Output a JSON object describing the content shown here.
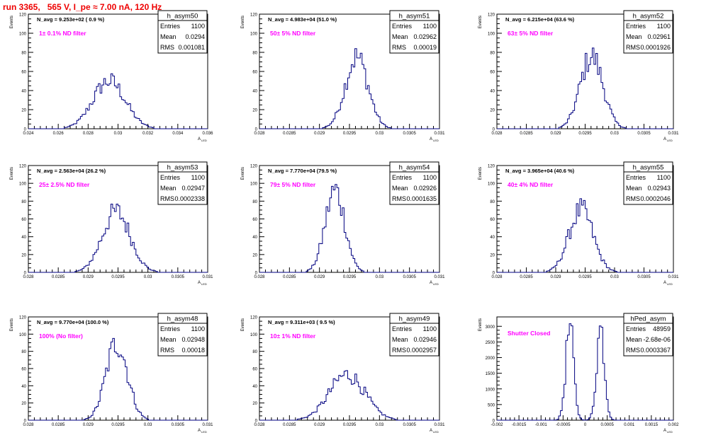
{
  "title": "run 3365,   565 V, I_pe ≈ 7.00 nA, 120 Hz",
  "axis_label_y": "Events",
  "axis_label_x": "A",
  "axis_label_x_sub": "LED",
  "stats_labels": {
    "entries": "Entries",
    "mean": "Mean",
    "rms": "RMS"
  },
  "colors": {
    "histogram": "#000080",
    "annotation": "#ff00ff",
    "title": "#ee0000",
    "frame": "#000000"
  },
  "chart_data": [
    {
      "type": "bar",
      "name": "h_asym50",
      "entries": "1100",
      "mean": "0.0294",
      "rms": "0.001081",
      "navg": "N_avg = 9.253e+02 ( 0.9 %)",
      "note": "1± 0.1% ND filter",
      "xlim": [
        0.024,
        0.036
      ],
      "ylim": [
        0,
        120
      ],
      "xticks": [
        "0.024",
        "0.026",
        "0.028",
        "0.03",
        "0.032",
        "0.034",
        "0.036"
      ],
      "yticks": [
        "0",
        "20",
        "40",
        "60",
        "80",
        "100",
        "120"
      ],
      "center": 0.0294,
      "peak": 50
    },
    {
      "type": "bar",
      "name": "h_asym51",
      "entries": "1100",
      "mean": "0.02962",
      "rms": "0.00019",
      "navg": "N_avg = 4.983e+04 (51.0 %)",
      "note": "50± 5% ND filter",
      "xlim": [
        0.028,
        0.031
      ],
      "ylim": [
        0,
        120
      ],
      "xticks": [
        "0.028",
        "0.0285",
        "0.029",
        "0.0295",
        "0.03",
        "0.0305",
        "0.031"
      ],
      "yticks": [
        "0",
        "20",
        "40",
        "60",
        "80",
        "100",
        "120"
      ],
      "center": 0.02962,
      "peak": 75
    },
    {
      "type": "bar",
      "name": "h_asym52",
      "entries": "1100",
      "mean": "0.02961",
      "rms": "0.0001926",
      "navg": "N_avg = 6.215e+04 (63.6 %)",
      "note": "63± 5% ND filter",
      "xlim": [
        0.028,
        0.031
      ],
      "ylim": [
        0,
        120
      ],
      "xticks": [
        "0.028",
        "0.0285",
        "0.029",
        "0.0295",
        "0.03",
        "0.0305",
        "0.031"
      ],
      "yticks": [
        "0",
        "20",
        "40",
        "60",
        "80",
        "100",
        "120"
      ],
      "center": 0.02961,
      "peak": 76
    },
    {
      "type": "bar",
      "name": "h_asym53",
      "entries": "1100",
      "mean": "0.02947",
      "rms": "0.0002338",
      "navg": "N_avg = 2.563e+04 (26.2 %)",
      "note": "25± 2.5% ND filter",
      "xlim": [
        0.028,
        0.031
      ],
      "ylim": [
        0,
        120
      ],
      "xticks": [
        "0.028",
        "0.0285",
        "0.029",
        "0.0295",
        "0.03",
        "0.0305",
        "0.031"
      ],
      "yticks": [
        "0",
        "20",
        "40",
        "60",
        "80",
        "100",
        "120"
      ],
      "center": 0.02947,
      "peak": 68
    },
    {
      "type": "bar",
      "name": "h_asym54",
      "entries": "1100",
      "mean": "0.02926",
      "rms": "0.0001635",
      "navg": "N_avg = 7.770e+04 (79.5 %)",
      "note": "79± 5% ND filter",
      "xlim": [
        0.028,
        0.031
      ],
      "ylim": [
        0,
        120
      ],
      "xticks": [
        "0.028",
        "0.0285",
        "0.029",
        "0.0295",
        "0.03",
        "0.0305",
        "0.031"
      ],
      "yticks": [
        "0",
        "20",
        "40",
        "60",
        "80",
        "100",
        "120"
      ],
      "center": 0.02926,
      "peak": 92
    },
    {
      "type": "bar",
      "name": "h_asym55",
      "entries": "1100",
      "mean": "0.02943",
      "rms": "0.0002046",
      "navg": "N_avg = 3.965e+04 (40.6 %)",
      "note": "40± 4% ND filter",
      "xlim": [
        0.028,
        0.031
      ],
      "ylim": [
        0,
        120
      ],
      "xticks": [
        "0.028",
        "0.0285",
        "0.029",
        "0.0295",
        "0.03",
        "0.0305",
        "0.031"
      ],
      "yticks": [
        "0",
        "20",
        "40",
        "60",
        "80",
        "100",
        "120"
      ],
      "center": 0.02943,
      "peak": 70
    },
    {
      "type": "bar",
      "name": "h_asym48",
      "entries": "1100",
      "mean": "0.02948",
      "rms": "0.00018",
      "navg": "N_avg = 9.770e+04 (100.0 %)",
      "note": "100% (No filter)",
      "xlim": [
        0.028,
        0.031
      ],
      "ylim": [
        0,
        120
      ],
      "xticks": [
        "0.028",
        "0.0285",
        "0.029",
        "0.0295",
        "0.03",
        "0.0305",
        "0.031"
      ],
      "yticks": [
        "0",
        "20",
        "40",
        "60",
        "80",
        "100",
        "120"
      ],
      "center": 0.02948,
      "peak": 90
    },
    {
      "type": "bar",
      "name": "h_asym49",
      "entries": "1100",
      "mean": "0.02946",
      "rms": "0.0002957",
      "navg": "N_avg = 9.311e+03 ( 9.5 %)",
      "note": "10± 1% ND filter",
      "xlim": [
        0.028,
        0.031
      ],
      "ylim": [
        0,
        120
      ],
      "xticks": [
        "0.028",
        "0.0285",
        "0.029",
        "0.0295",
        "0.03",
        "0.0305",
        "0.031"
      ],
      "yticks": [
        "0",
        "20",
        "40",
        "60",
        "80",
        "100",
        "120"
      ],
      "center": 0.02946,
      "peak": 53
    },
    {
      "type": "bar",
      "name": "hPed_asym",
      "entries": "48959",
      "mean": "-2.68e-06",
      "rms": "0.0003367",
      "navg": "",
      "note": "Shutter Closed",
      "xlim": [
        -0.002,
        0.002
      ],
      "ylim": [
        0,
        3300
      ],
      "xticks": [
        "-0.002",
        "-0.0015",
        "-0.001",
        "-0.0005",
        "0",
        "0.0005",
        "0.001",
        "0.0015",
        "0.002"
      ],
      "yticks": [
        "0",
        "500",
        "1000",
        "1500",
        "2000",
        "2500",
        "3000"
      ],
      "center": -0.00035,
      "center2": 0.00035,
      "peak": 2950
    }
  ]
}
